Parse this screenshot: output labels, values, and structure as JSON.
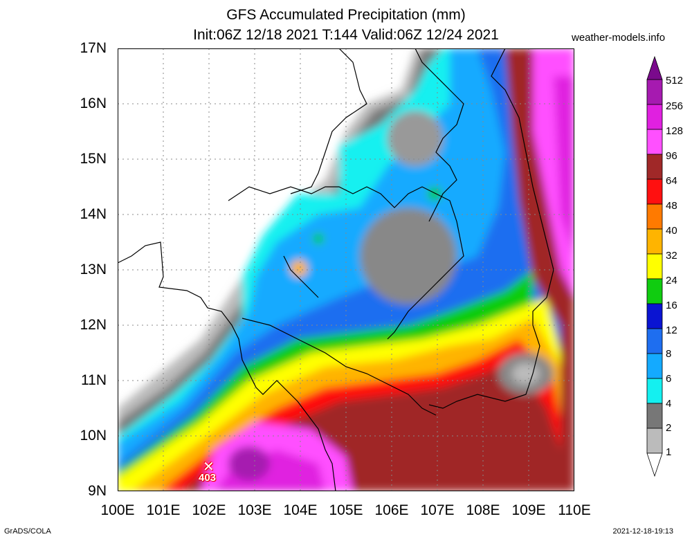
{
  "header": {
    "title_line1": "GFS Accumulated Precipitation (mm)",
    "title_line2": "Init:06Z 12/18 2021 T:144 Valid:06Z 12/24 2021",
    "site": "weather-models.info"
  },
  "axes": {
    "lat_labels": [
      "17N",
      "16N",
      "15N",
      "14N",
      "13N",
      "12N",
      "11N",
      "10N",
      "9N"
    ],
    "lon_labels": [
      "100E",
      "101E",
      "102E",
      "103E",
      "104E",
      "105E",
      "106E",
      "107E",
      "108E",
      "109E",
      "110E"
    ]
  },
  "colorbar": {
    "levels": [
      "512",
      "256",
      "128",
      "96",
      "64",
      "48",
      "40",
      "32",
      "24",
      "16",
      "12",
      "8",
      "6",
      "4",
      "2",
      "1"
    ],
    "colors": [
      "#7a0a8c",
      "#a61ab0",
      "#e020e0",
      "#ff50ff",
      "#a02828",
      "#ff1010",
      "#ff7a00",
      "#ffb400",
      "#ffff00",
      "#10cc10",
      "#0a14d2",
      "#1e6ef0",
      "#14aaff",
      "#14f0f0",
      "#777777",
      "#bbbbbb",
      "#ffffff"
    ]
  },
  "marker": {
    "value": "403",
    "icon": "x-marker-icon"
  },
  "footer": {
    "left": "GrADS/COLA",
    "right": "2021-12-18-19:13"
  }
}
